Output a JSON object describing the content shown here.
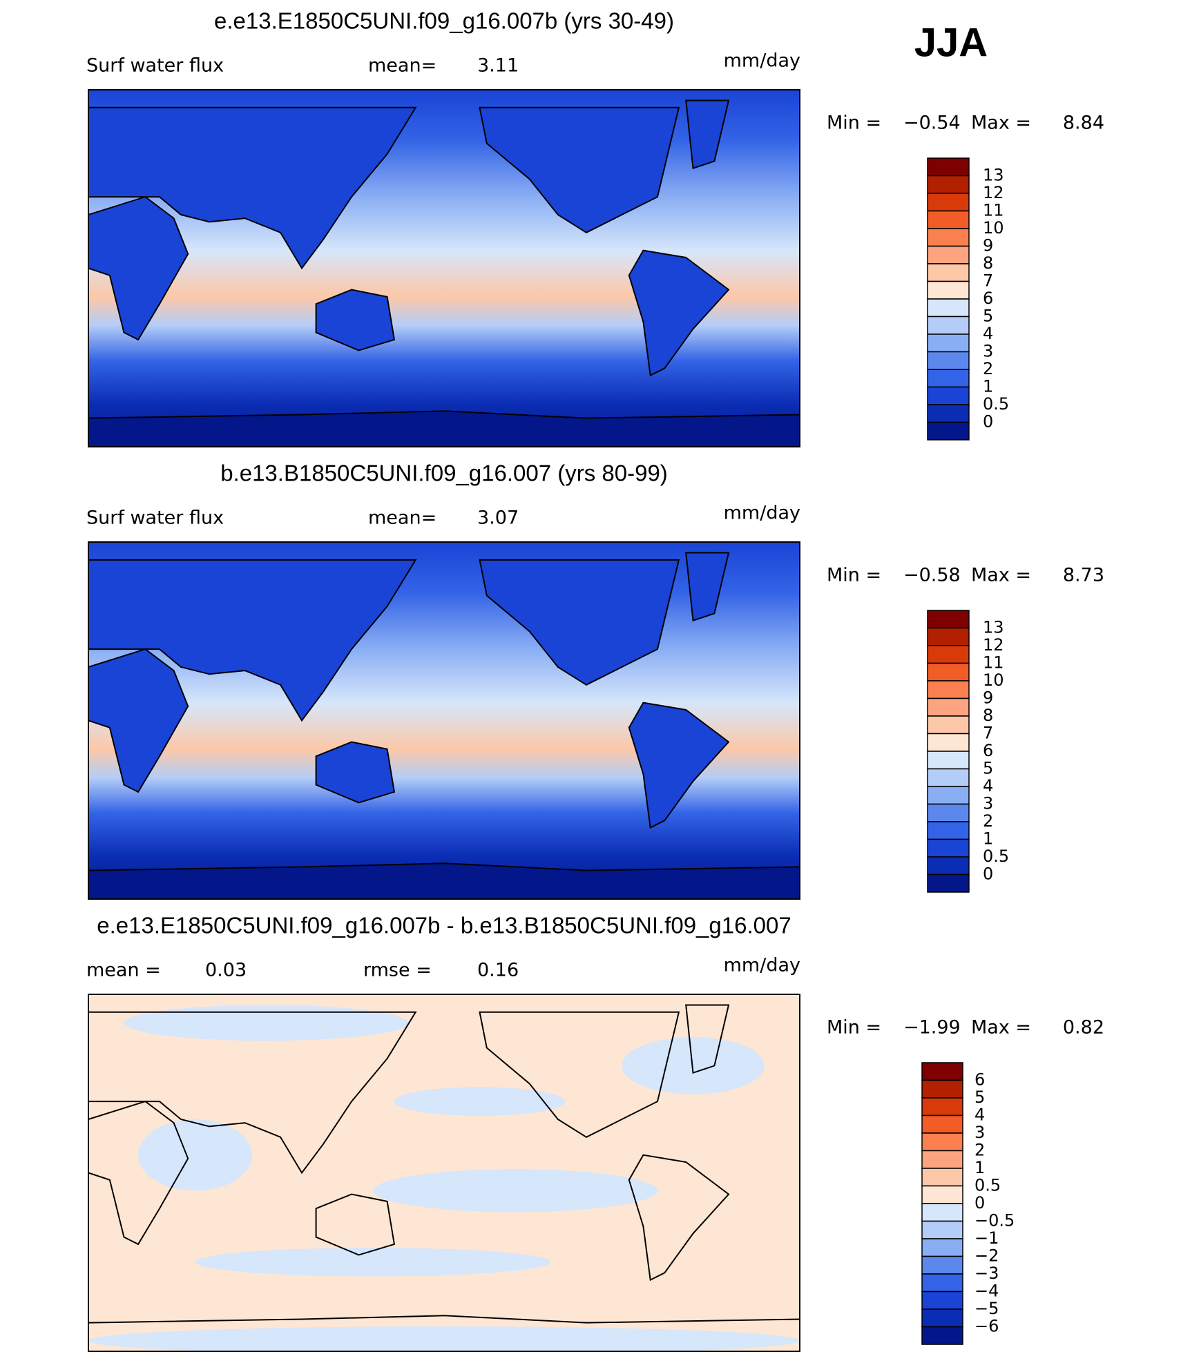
{
  "header": {
    "season": "JJA"
  },
  "panels": [
    {
      "title": "e.e13.E1850C5UNI.f09_g16.007b (yrs 30-49)",
      "field": "Surf water flux",
      "stats": [
        {
          "label": "mean=",
          "value": "3.11"
        }
      ],
      "units": "mm/day",
      "min_label": "Min =",
      "min": "−0.54",
      "max_label": "Max =",
      "max": "8.84",
      "colorbar": {
        "labels": [
          "13",
          "12",
          "11",
          "10",
          "9",
          "8",
          "7",
          "6",
          "5",
          "4",
          "3",
          "2",
          "1",
          "0.5",
          "0"
        ],
        "colors": [
          "#7f0000",
          "#b22000",
          "#d93a0a",
          "#f25c26",
          "#fb8050",
          "#fca480",
          "#fcc8a8",
          "#fde6d4",
          "#d6e6fb",
          "#b4cdf8",
          "#8aaef4",
          "#5c88ee",
          "#3363e6",
          "#1a44d6",
          "#0b2db4",
          "#03178a"
        ]
      }
    },
    {
      "title": "b.e13.B1850C5UNI.f09_g16.007 (yrs 80-99)",
      "field": "Surf water flux",
      "stats": [
        {
          "label": "mean=",
          "value": "3.07"
        }
      ],
      "units": "mm/day",
      "min_label": "Min =",
      "min": "−0.58",
      "max_label": "Max =",
      "max": "8.73",
      "colorbar": {
        "labels": [
          "13",
          "12",
          "11",
          "10",
          "9",
          "8",
          "7",
          "6",
          "5",
          "4",
          "3",
          "2",
          "1",
          "0.5",
          "0"
        ],
        "colors": [
          "#7f0000",
          "#b22000",
          "#d93a0a",
          "#f25c26",
          "#fb8050",
          "#fca480",
          "#fcc8a8",
          "#fde6d4",
          "#d6e6fb",
          "#b4cdf8",
          "#8aaef4",
          "#5c88ee",
          "#3363e6",
          "#1a44d6",
          "#0b2db4",
          "#03178a"
        ]
      }
    },
    {
      "title": "e.e13.E1850C5UNI.f09_g16.007b - b.e13.B1850C5UNI.f09_g16.007",
      "stats": [
        {
          "label": "mean =",
          "value": "0.03"
        },
        {
          "label": "rmse =",
          "value": "0.16"
        }
      ],
      "units": "mm/day",
      "min_label": "Min =",
      "min": "−1.99",
      "max_label": "Max =",
      "max": "0.82",
      "colorbar": {
        "labels": [
          "6",
          "5",
          "4",
          "3",
          "2",
          "1",
          "0.5",
          "0",
          "−0.5",
          "−1",
          "−2",
          "−3",
          "−4",
          "−5",
          "−6"
        ],
        "colors": [
          "#7f0000",
          "#b22000",
          "#d93a0a",
          "#f25c26",
          "#fb8050",
          "#fca480",
          "#fcc8a8",
          "#fde6d4",
          "#d6e6fb",
          "#b4cdf8",
          "#8aaef4",
          "#5c88ee",
          "#3363e6",
          "#1a44d6",
          "#0b2db4",
          "#03178a"
        ]
      }
    }
  ]
}
